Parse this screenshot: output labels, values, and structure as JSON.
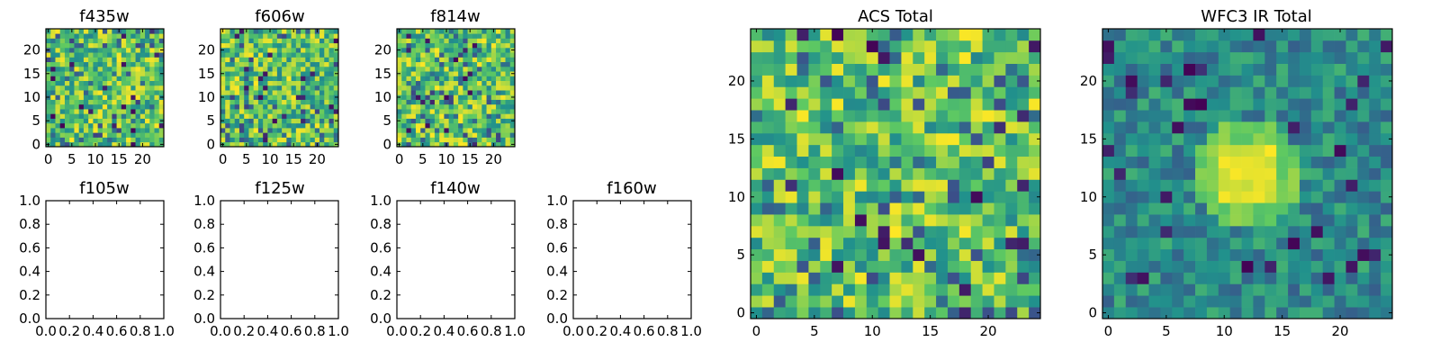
{
  "figure": {
    "background": "#ffffff",
    "colormap": [
      "#440154",
      "#3b528b",
      "#21918c",
      "#5ec962",
      "#fde725"
    ]
  },
  "chart_data": [
    {
      "type": "heatmap",
      "title": "f435w",
      "grid": [
        25,
        25
      ],
      "seed": 11,
      "xlim": [
        0,
        25
      ],
      "ylim": [
        0,
        25
      ],
      "xticks": [
        0,
        5,
        10,
        15,
        20
      ],
      "yticks": [
        0,
        5,
        10,
        15,
        20
      ],
      "ytick_labels": [
        "0",
        "5",
        "10",
        "15",
        "20"
      ],
      "value_range": [
        0,
        1
      ],
      "empty": false
    },
    {
      "type": "heatmap",
      "title": "f606w",
      "grid": [
        25,
        25
      ],
      "seed": 23,
      "xlim": [
        0,
        25
      ],
      "ylim": [
        0,
        25
      ],
      "xticks": [
        0,
        5,
        10,
        15,
        20
      ],
      "yticks": [
        0,
        5,
        10,
        15,
        20
      ],
      "ytick_labels": [
        "0",
        "5",
        "10",
        "15",
        "20"
      ],
      "value_range": [
        0,
        1
      ],
      "empty": false
    },
    {
      "type": "heatmap",
      "title": "f814w",
      "grid": [
        25,
        25
      ],
      "seed": 37,
      "xlim": [
        0,
        25
      ],
      "ylim": [
        0,
        25
      ],
      "xticks": [
        0,
        5,
        10,
        15,
        20
      ],
      "yticks": [
        0,
        5,
        10,
        15,
        20
      ],
      "ytick_labels": [
        "0",
        "5",
        "10",
        "15",
        "20"
      ],
      "value_range": [
        0,
        1
      ],
      "empty": false
    },
    {
      "type": "scatter",
      "title": "f105w",
      "xlim": [
        0,
        1
      ],
      "ylim": [
        0,
        1
      ],
      "xticks": [
        0,
        0.2,
        0.4,
        0.6,
        0.8,
        1
      ],
      "xtick_labels": [
        "0.0",
        "0.2",
        "0.4",
        "0.6",
        "0.8",
        "1.0"
      ],
      "yticks": [
        0,
        0.2,
        0.4,
        0.6,
        0.8,
        1
      ],
      "ytick_labels": [
        "0.0",
        "0.2",
        "0.4",
        "0.6",
        "0.8",
        "1.0"
      ],
      "empty": true
    },
    {
      "type": "scatter",
      "title": "f125w",
      "xlim": [
        0,
        1
      ],
      "ylim": [
        0,
        1
      ],
      "xticks": [
        0,
        0.2,
        0.4,
        0.6,
        0.8,
        1
      ],
      "xtick_labels": [
        "0.0",
        "0.2",
        "0.4",
        "0.6",
        "0.8",
        "1.0"
      ],
      "yticks": [
        0,
        0.2,
        0.4,
        0.6,
        0.8,
        1
      ],
      "ytick_labels": [
        "0.0",
        "0.2",
        "0.4",
        "0.6",
        "0.8",
        "1.0"
      ],
      "empty": true
    },
    {
      "type": "scatter",
      "title": "f140w",
      "xlim": [
        0,
        1
      ],
      "ylim": [
        0,
        1
      ],
      "xticks": [
        0,
        0.2,
        0.4,
        0.6,
        0.8,
        1
      ],
      "xtick_labels": [
        "0.0",
        "0.2",
        "0.4",
        "0.6",
        "0.8",
        "1.0"
      ],
      "yticks": [
        0,
        0.2,
        0.4,
        0.6,
        0.8,
        1
      ],
      "ytick_labels": [
        "0.0",
        "0.2",
        "0.4",
        "0.6",
        "0.8",
        "1.0"
      ],
      "empty": true
    },
    {
      "type": "scatter",
      "title": "f160w",
      "xlim": [
        0,
        1
      ],
      "ylim": [
        0,
        1
      ],
      "xticks": [
        0,
        0.2,
        0.4,
        0.6,
        0.8,
        1
      ],
      "xtick_labels": [
        "0.0",
        "0.2",
        "0.4",
        "0.6",
        "0.8",
        "1.0"
      ],
      "yticks": [
        0,
        0.2,
        0.4,
        0.6,
        0.8,
        1
      ],
      "ytick_labels": [
        "0.0",
        "0.2",
        "0.4",
        "0.6",
        "0.8",
        "1.0"
      ],
      "empty": true
    },
    {
      "type": "heatmap",
      "title": "ACS Total",
      "grid": [
        25,
        25
      ],
      "seed": 53,
      "xlim": [
        0,
        25
      ],
      "ylim": [
        0,
        25
      ],
      "xticks": [
        0,
        5,
        10,
        15,
        20
      ],
      "yticks": [
        0,
        5,
        10,
        15,
        20
      ],
      "ytick_labels": [
        "0",
        "5",
        "10",
        "15",
        "20"
      ],
      "value_range": [
        0,
        1
      ],
      "empty": false
    },
    {
      "type": "heatmap",
      "title": "WFC3 IR Total",
      "grid": [
        25,
        25
      ],
      "seed": 71,
      "xlim": [
        0,
        25
      ],
      "ylim": [
        0,
        25
      ],
      "xticks": [
        0,
        5,
        10,
        15,
        20
      ],
      "yticks": [
        0,
        5,
        10,
        15,
        20
      ],
      "ytick_labels": [
        "0",
        "5",
        "10",
        "15",
        "20"
      ],
      "value_range": [
        0,
        1
      ],
      "empty": false,
      "bright_blob": {
        "x": 12,
        "y": 12,
        "radius": 3
      }
    }
  ]
}
